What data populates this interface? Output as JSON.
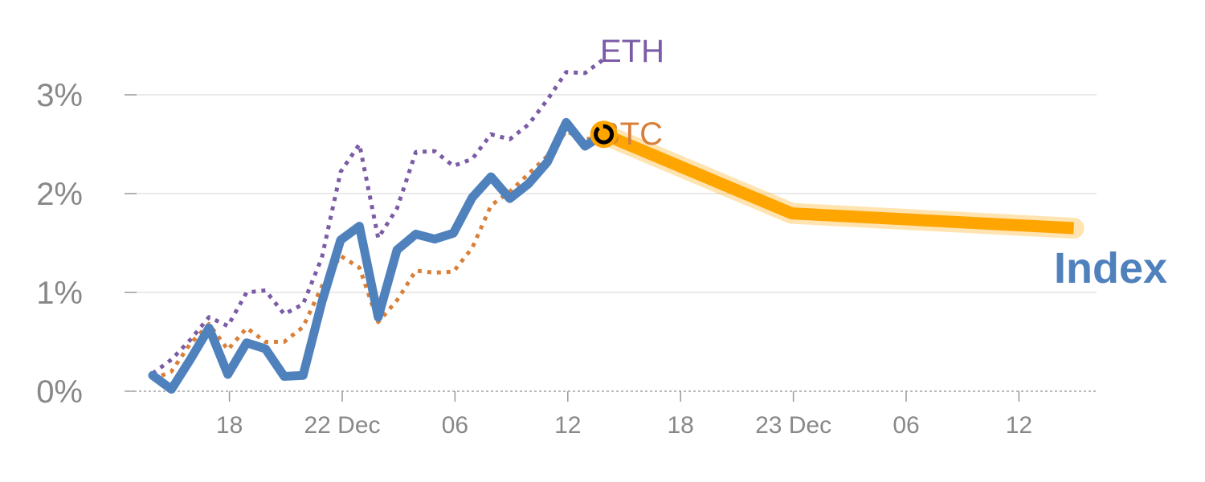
{
  "chart_data": {
    "type": "line",
    "y_tick_labels": [
      "0%",
      "1%",
      "2%",
      "3%"
    ],
    "y_ticks": [
      0,
      1,
      2,
      3
    ],
    "ylim": [
      0,
      3.35
    ],
    "x_tick_labels": [
      "18",
      "22 Dec",
      "06",
      "12",
      "18",
      "23 Dec",
      "06",
      "12"
    ],
    "x_tick_index": [
      4,
      10,
      16,
      22,
      28,
      34,
      40,
      46
    ],
    "xlim": [
      -0.5,
      50
    ],
    "grid": true,
    "series": [
      {
        "name": "ETH",
        "style": "dotted",
        "color": "#7B5BA6",
        "x": [
          0,
          1,
          2,
          3,
          4,
          5,
          6,
          7,
          8,
          9,
          10,
          11,
          12,
          13,
          14,
          15,
          16,
          17,
          18,
          19,
          20,
          21,
          22,
          23,
          24
        ],
        "values": [
          0.18,
          0.32,
          0.52,
          0.75,
          0.66,
          1.0,
          1.02,
          0.78,
          0.88,
          1.35,
          2.22,
          2.5,
          1.55,
          1.85,
          2.42,
          2.43,
          2.28,
          2.35,
          2.6,
          2.55,
          2.7,
          2.95,
          3.23,
          3.22,
          3.36
        ]
      },
      {
        "name": "BTC",
        "style": "dotted",
        "color": "#D8803A",
        "x": [
          0,
          1,
          2,
          3,
          4,
          5,
          6,
          7,
          8,
          9,
          10,
          11,
          12,
          13,
          14,
          15,
          16,
          17,
          18,
          19,
          20,
          21,
          22,
          23,
          24
        ],
        "values": [
          0.12,
          0.2,
          0.48,
          0.68,
          0.42,
          0.64,
          0.5,
          0.5,
          0.65,
          1.06,
          1.37,
          1.25,
          0.7,
          0.92,
          1.22,
          1.2,
          1.21,
          1.45,
          1.88,
          2.02,
          2.2,
          2.38,
          2.63,
          2.55,
          2.57
        ]
      },
      {
        "name": "Index",
        "style": "solid",
        "color": "#4F81BD",
        "x": [
          0,
          1,
          2,
          3,
          4,
          5,
          6,
          7,
          8,
          9,
          10,
          11,
          12,
          13,
          14,
          15,
          16,
          17,
          18,
          19,
          20,
          21,
          22,
          23,
          24
        ],
        "values": [
          0.16,
          0.02,
          0.32,
          0.64,
          0.17,
          0.49,
          0.43,
          0.15,
          0.16,
          0.9,
          1.53,
          1.67,
          0.75,
          1.43,
          1.59,
          1.54,
          1.6,
          1.96,
          2.17,
          1.95,
          2.1,
          2.32,
          2.72,
          2.48,
          2.6
        ]
      },
      {
        "name": "",
        "style": "solid-projection",
        "color": "#FFA500",
        "x": [
          24,
          34,
          49
        ],
        "values": [
          2.6,
          1.8,
          1.65
        ]
      }
    ],
    "marker": {
      "x": 24,
      "y": 2.6
    }
  }
}
